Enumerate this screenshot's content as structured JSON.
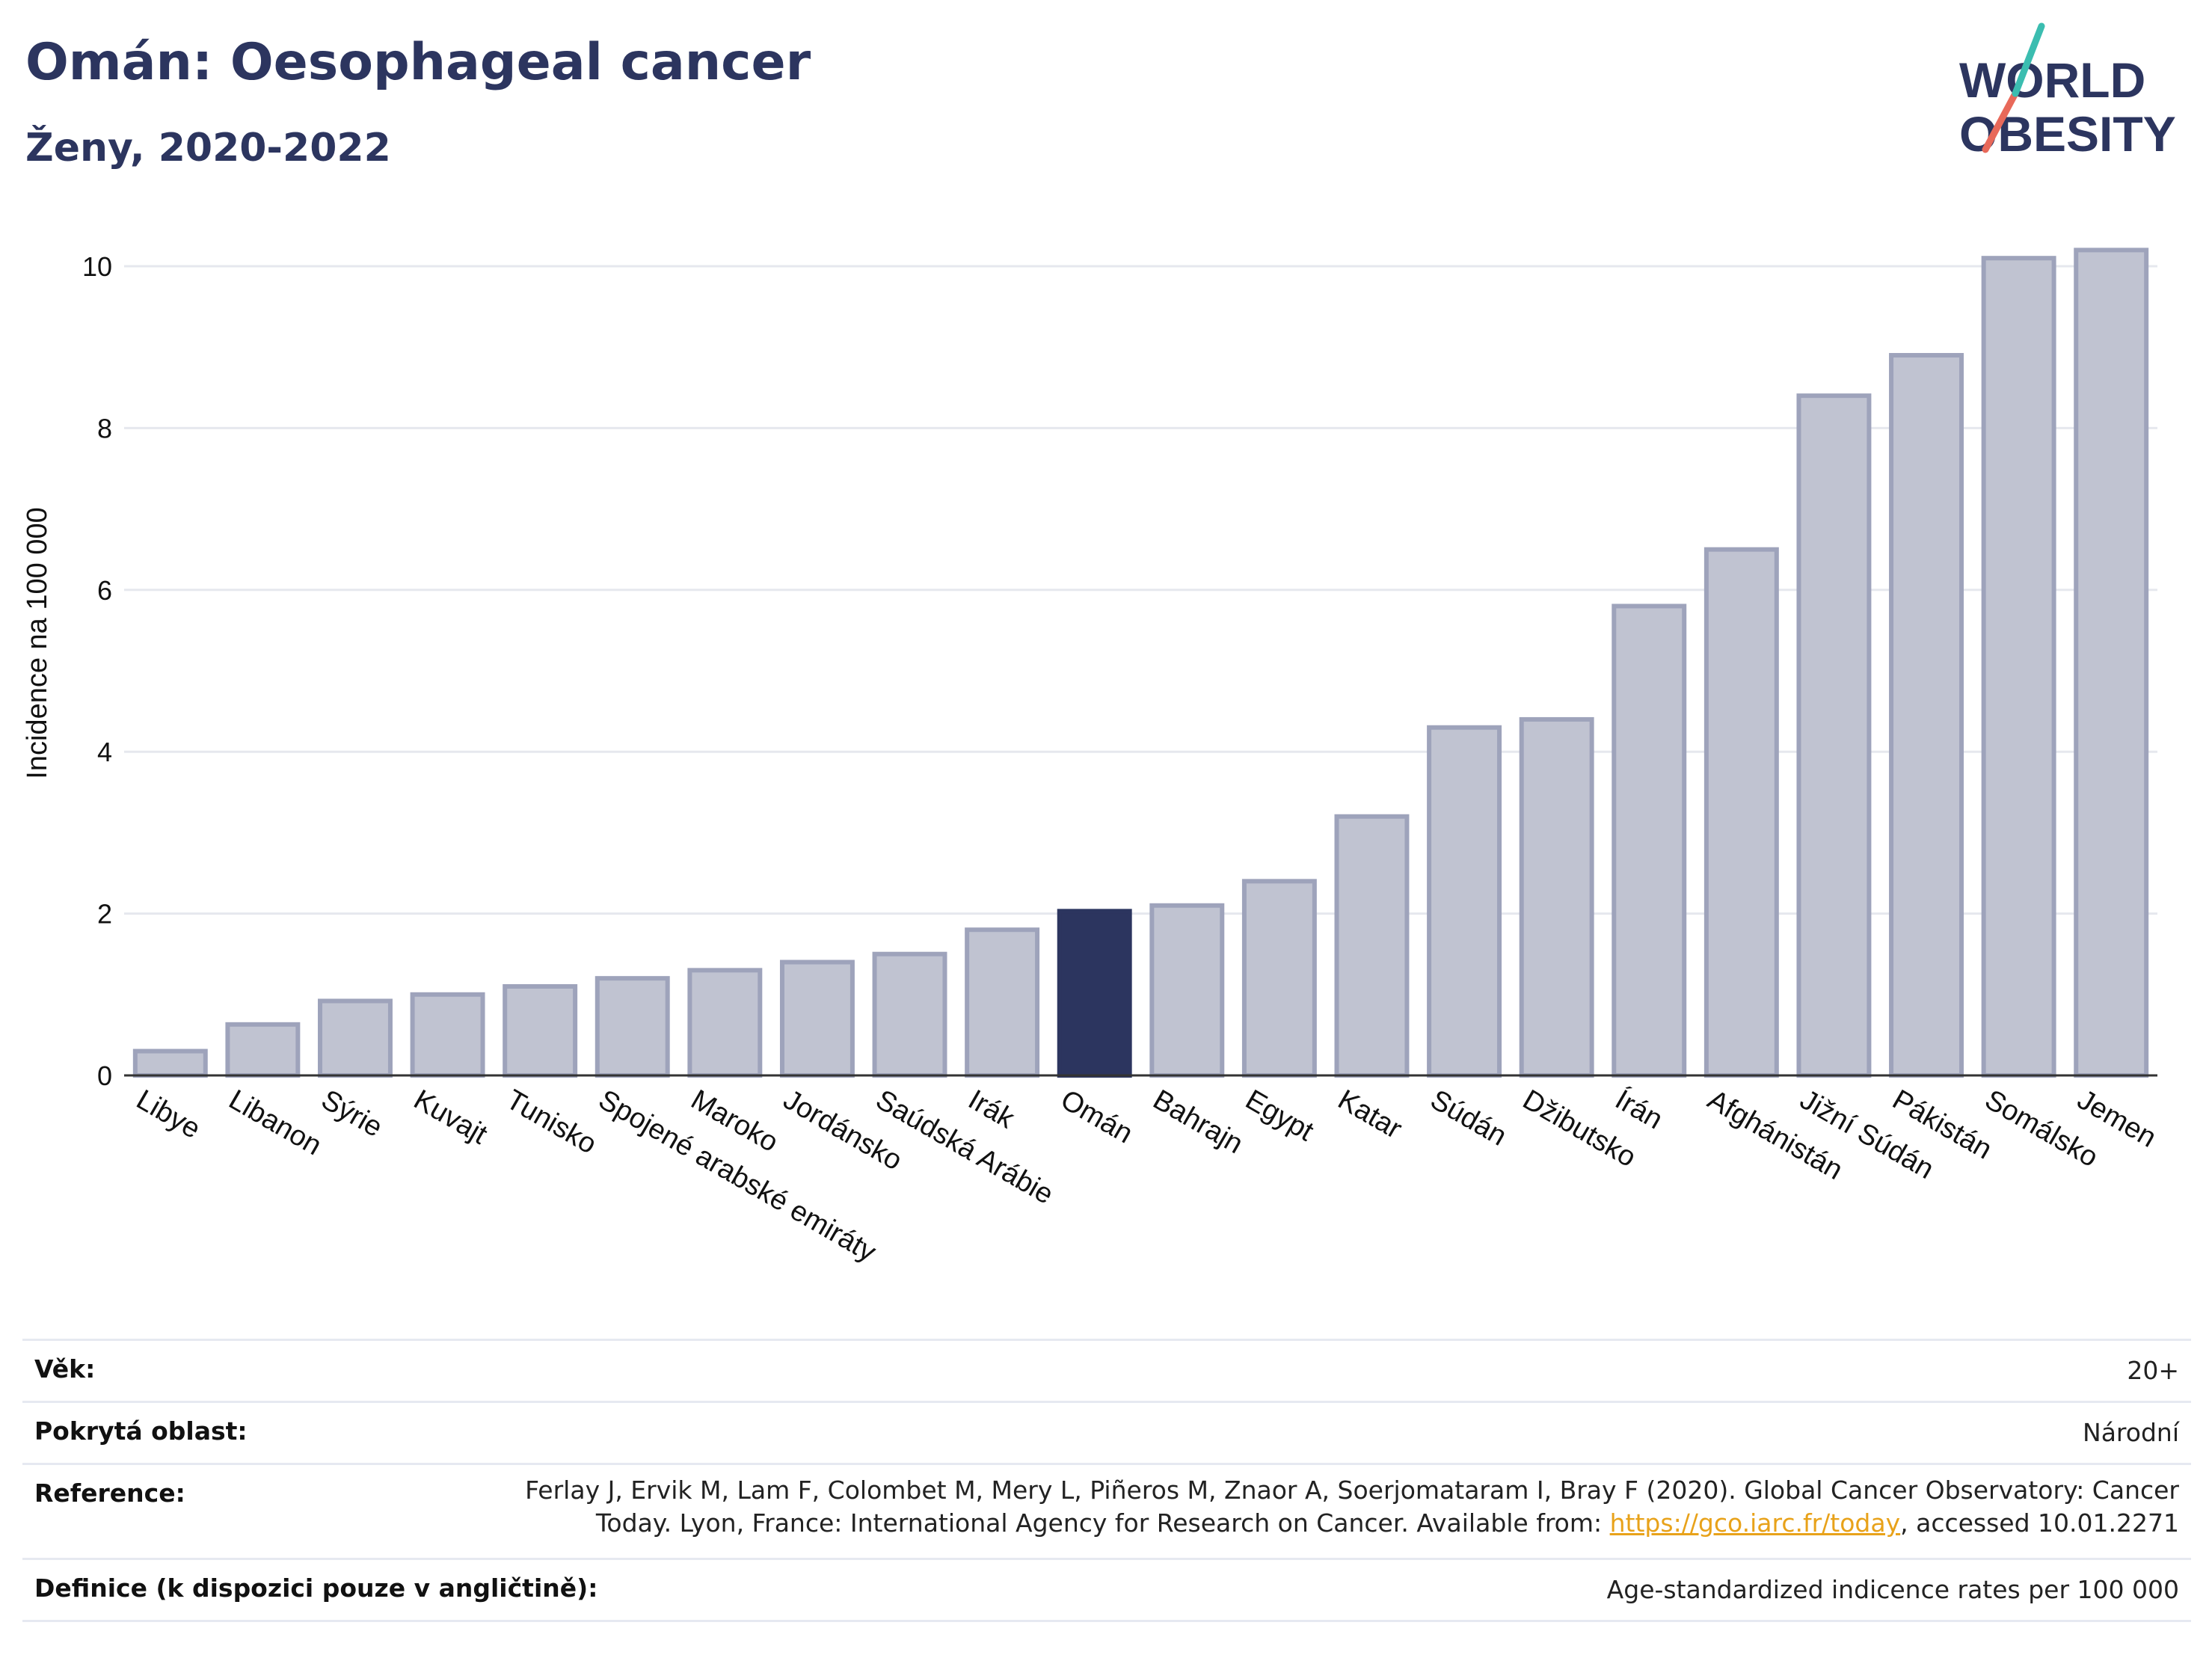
{
  "header": {
    "title": "Omán: Oesophageal cancer",
    "subtitle": "Ženy, 2020-2022"
  },
  "logo": {
    "line1": "WORLD",
    "line2": "OBESITY"
  },
  "chart_data": {
    "type": "bar",
    "categories": [
      "Libye",
      "Libanon",
      "Sýrie",
      "Kuvajt",
      "Tunisko",
      "Spojené arabské emiráty",
      "Maroko",
      "Jordánsko",
      "Saúdská Arábie",
      "Irák",
      "Omán",
      "Bahrajn",
      "Egypt",
      "Katar",
      "Súdán",
      "Džibutsko",
      "Írán",
      "Afghánistán",
      "Jižní Súdán",
      "Pákistán",
      "Somálsko",
      "Jemen"
    ],
    "values": [
      0.3,
      0.63,
      0.92,
      1.0,
      1.1,
      1.2,
      1.3,
      1.4,
      1.5,
      1.8,
      2.03,
      2.1,
      2.4,
      3.2,
      4.3,
      4.4,
      5.8,
      6.5,
      8.4,
      8.9,
      10.1,
      10.2
    ],
    "highlight": "Omán",
    "ylabel": "Incidence na 100 000",
    "yticks": [
      0,
      2,
      4,
      6,
      8,
      10
    ],
    "ylim": [
      0,
      10.4
    ],
    "grid": true,
    "colors": {
      "bar": "#c0c3d1",
      "bar_edge": "#9ea3bb",
      "highlight": "#2c355f",
      "grid": "#e6e8ee"
    }
  },
  "info": {
    "age_label": "Věk:",
    "age_value": "20+",
    "area_label": "Pokrytá oblast:",
    "area_value": "Národní",
    "ref_label": "Reference:",
    "ref_line1": "Ferlay J, Ervik M, Lam F, Colombet M, Mery L, Piñeros M, Znaor A, Soerjomataram I, Bray F (2020). Global Cancer Observatory: Cancer",
    "ref_line2_pre": "Today. Lyon, France: International Agency for Research on Cancer. Available from: ",
    "ref_link": "https://gco.iarc.fr/today",
    "ref_line2_post": ", accessed 10.01.2271",
    "def_label": "Definice (k dispozici pouze v angličtině):",
    "def_value": "Age-standardized indicence rates per 100 000"
  }
}
